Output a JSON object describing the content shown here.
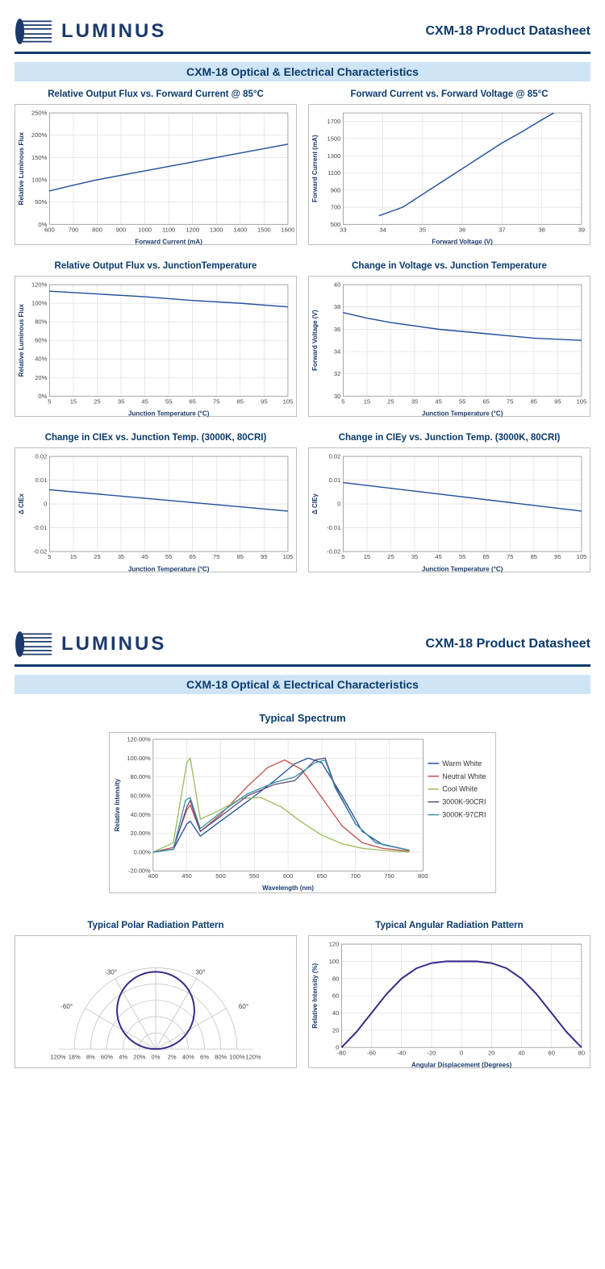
{
  "brand": "LUMINUS",
  "product_title": "CXM-18 Product Datasheet",
  "section_title": "CXM-18 Optical & Electrical Characteristics",
  "colors": {
    "navy": "#0a3a6b",
    "sectionbar": "#cfe5f7",
    "border": "#bfbfbf",
    "grid": "#d9d9d9",
    "series_blue": "#1f4e9b",
    "warm": "#1f4e9b",
    "neutral": "#c0504d",
    "cool": "#9bbb59",
    "cri90": "#604a7b",
    "cri97": "#3891a6",
    "polar": "#3b2a8a"
  },
  "charts": {
    "flux_current": {
      "title": "Relative Output Flux vs. Forward Current @ 85°C",
      "ylabel": "Relative Luminous Flux",
      "xlabel": "Forward Current (mA)",
      "xlim": [
        600,
        1600
      ],
      "xstep": 100,
      "ylim": [
        0,
        250
      ],
      "ystep": 50,
      "ysuffix": "%",
      "points": [
        [
          600,
          75
        ],
        [
          700,
          88
        ],
        [
          800,
          100
        ],
        [
          900,
          110
        ],
        [
          1000,
          120
        ],
        [
          1100,
          130
        ],
        [
          1200,
          140
        ],
        [
          1300,
          150
        ],
        [
          1400,
          160
        ],
        [
          1500,
          170
        ],
        [
          1600,
          180
        ]
      ]
    },
    "iv": {
      "title": "Forward Current vs. Forward Voltage @ 85°C",
      "ylabel": "Forward Current (mA)",
      "xlabel": "Forward Voltage (V)",
      "xlim": [
        33,
        39
      ],
      "xstep": 1,
      "ylim": [
        500,
        1800
      ],
      "ystep": 200,
      "points": [
        [
          33.9,
          600
        ],
        [
          34.5,
          700
        ],
        [
          35,
          850
        ],
        [
          35.5,
          1000
        ],
        [
          36,
          1150
        ],
        [
          36.5,
          1300
        ],
        [
          37,
          1450
        ],
        [
          37.5,
          1580
        ],
        [
          38,
          1720
        ],
        [
          38.3,
          1800
        ]
      ]
    },
    "flux_tj": {
      "title": "Relative Output Flux vs. JunctionTemperature",
      "ylabel": "Relative Luminous Flux",
      "xlabel": "Junction Temperature (°C)",
      "xlim": [
        5,
        105
      ],
      "xstep": 10,
      "ylim": [
        0,
        120
      ],
      "ystep": 20,
      "ysuffix": "%",
      "points": [
        [
          5,
          113
        ],
        [
          25,
          110
        ],
        [
          45,
          107
        ],
        [
          65,
          103
        ],
        [
          85,
          100
        ],
        [
          105,
          96
        ]
      ]
    },
    "vf_tj": {
      "title": "Change in Voltage vs. Junction  Temperature",
      "ylabel": "Forward Voltage (V)",
      "xlabel": "Junction Temperature (°C)",
      "xlim": [
        5,
        105
      ],
      "xstep": 10,
      "ylim": [
        30,
        40
      ],
      "ystep": 2,
      "points": [
        [
          5,
          37.5
        ],
        [
          15,
          37
        ],
        [
          25,
          36.6
        ],
        [
          35,
          36.3
        ],
        [
          45,
          36
        ],
        [
          55,
          35.8
        ],
        [
          65,
          35.6
        ],
        [
          75,
          35.4
        ],
        [
          85,
          35.2
        ],
        [
          95,
          35.1
        ],
        [
          105,
          35
        ]
      ]
    },
    "ciex": {
      "title": "Change in CIEx vs. Junction Temp. (3000K, 80CRI)",
      "ylabel": "Δ CIEx",
      "xlabel": "Junction Temperature (°C)",
      "xlim": [
        5,
        105
      ],
      "xstep": 10,
      "ylim": [
        -0.02,
        0.02
      ],
      "ystep": 0.01,
      "points": [
        [
          5,
          0.006
        ],
        [
          105,
          -0.003
        ]
      ]
    },
    "ciey": {
      "title": "Change in CIEy vs. Junction  Temp. (3000K, 80CRI)",
      "ylabel": "Δ CIEy",
      "xlabel": "Junction Temperature (°C)",
      "xlim": [
        5,
        105
      ],
      "xstep": 10,
      "ylim": [
        -0.02,
        0.02
      ],
      "ystep": 0.01,
      "points": [
        [
          5,
          0.009
        ],
        [
          105,
          -0.003
        ]
      ]
    }
  },
  "spectrum": {
    "title": "Typical Spectrum",
    "ylabel": "Relative Intensity",
    "xlabel": "Wavelength (nm)",
    "xlim": [
      400,
      800
    ],
    "xstep": 50,
    "ylim": [
      -20,
      120
    ],
    "ystep": 20,
    "ysuffix": ".00%",
    "legend": [
      "Warm White",
      "Neutral White",
      "Cool White",
      "3000K-90CRI",
      "3000K-97CRI"
    ],
    "series": {
      "warm": [
        [
          400,
          0
        ],
        [
          430,
          3
        ],
        [
          450,
          30
        ],
        [
          455,
          33
        ],
        [
          470,
          17
        ],
        [
          500,
          33
        ],
        [
          540,
          54
        ],
        [
          580,
          76
        ],
        [
          610,
          94
        ],
        [
          630,
          100
        ],
        [
          650,
          95
        ],
        [
          680,
          60
        ],
        [
          710,
          22
        ],
        [
          740,
          8
        ],
        [
          780,
          2
        ]
      ],
      "neutral": [
        [
          400,
          0
        ],
        [
          430,
          5
        ],
        [
          450,
          45
        ],
        [
          455,
          50
        ],
        [
          470,
          22
        ],
        [
          500,
          40
        ],
        [
          540,
          70
        ],
        [
          570,
          90
        ],
        [
          595,
          98
        ],
        [
          620,
          88
        ],
        [
          650,
          58
        ],
        [
          680,
          28
        ],
        [
          710,
          10
        ],
        [
          740,
          4
        ],
        [
          780,
          1
        ]
      ],
      "cool": [
        [
          400,
          0
        ],
        [
          430,
          10
        ],
        [
          450,
          95
        ],
        [
          455,
          100
        ],
        [
          470,
          35
        ],
        [
          500,
          45
        ],
        [
          530,
          57
        ],
        [
          560,
          58
        ],
        [
          590,
          48
        ],
        [
          620,
          32
        ],
        [
          650,
          18
        ],
        [
          680,
          9
        ],
        [
          710,
          4
        ],
        [
          740,
          2
        ],
        [
          780,
          0
        ]
      ],
      "cri90": [
        [
          400,
          0
        ],
        [
          430,
          3
        ],
        [
          450,
          48
        ],
        [
          455,
          55
        ],
        [
          470,
          22
        ],
        [
          500,
          38
        ],
        [
          540,
          60
        ],
        [
          580,
          72
        ],
        [
          610,
          76
        ],
        [
          640,
          98
        ],
        [
          655,
          100
        ],
        [
          670,
          70
        ],
        [
          700,
          30
        ],
        [
          730,
          10
        ],
        [
          780,
          2
        ]
      ],
      "cri97": [
        [
          400,
          0
        ],
        [
          430,
          3
        ],
        [
          448,
          55
        ],
        [
          455,
          58
        ],
        [
          470,
          25
        ],
        [
          500,
          42
        ],
        [
          540,
          62
        ],
        [
          580,
          74
        ],
        [
          610,
          80
        ],
        [
          640,
          95
        ],
        [
          655,
          98
        ],
        [
          670,
          68
        ],
        [
          700,
          30
        ],
        [
          730,
          10
        ],
        [
          780,
          2
        ]
      ]
    }
  },
  "polar": {
    "title": "Typical Polar Radiation Pattern",
    "angle_labels": [
      "-30°",
      "30°",
      "-60°",
      "60°"
    ],
    "bottom_labels": [
      "120%",
      "18%",
      "8%",
      "60%",
      "4%",
      "20%",
      "0%",
      "2%",
      "40%",
      "6%",
      "80%",
      "100%",
      "120%"
    ]
  },
  "angular": {
    "title": "Typical Angular Radiation Pattern",
    "xlabel": "Angular Displacement (Degrees)",
    "ylabel": "Relative Intensity (%)",
    "xlim": [
      -80,
      80
    ],
    "xstep": 20,
    "ylim": [
      0,
      120
    ],
    "ystep": 20,
    "points": [
      [
        -80,
        0
      ],
      [
        -70,
        18
      ],
      [
        -60,
        40
      ],
      [
        -50,
        62
      ],
      [
        -40,
        80
      ],
      [
        -30,
        92
      ],
      [
        -20,
        98
      ],
      [
        -10,
        100
      ],
      [
        0,
        100
      ],
      [
        10,
        100
      ],
      [
        20,
        98
      ],
      [
        30,
        92
      ],
      [
        40,
        80
      ],
      [
        50,
        62
      ],
      [
        60,
        40
      ],
      [
        70,
        18
      ],
      [
        80,
        0
      ]
    ]
  }
}
